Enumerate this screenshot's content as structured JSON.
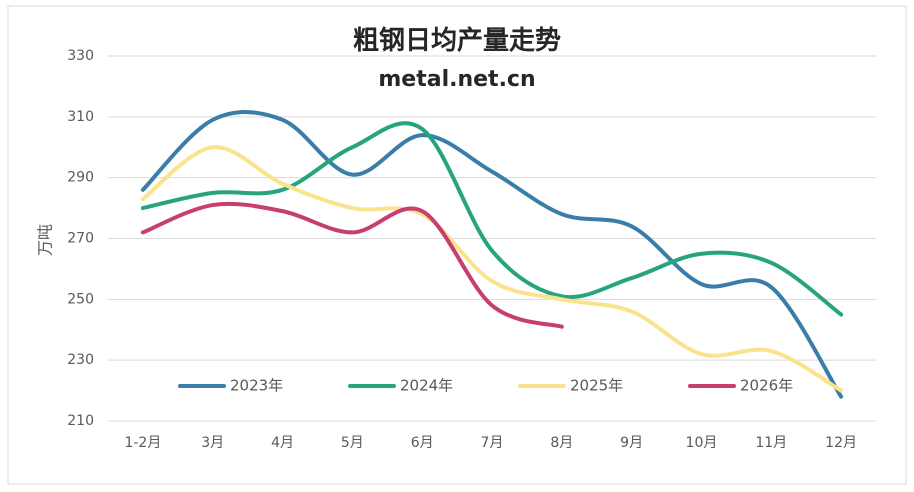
{
  "chart_data": {
    "type": "line",
    "title": "粗钢日均产量走势",
    "subtitle": "metal.net.cn",
    "y_label": "万吨",
    "categories": [
      "1-2月",
      "3月",
      "4月",
      "5月",
      "6月",
      "7月",
      "8月",
      "9月",
      "10月",
      "11月",
      "12月"
    ],
    "series": [
      {
        "name": "2023年",
        "color": "#3a7ea8",
        "values": [
          286,
          309,
          309,
          291,
          304,
          292,
          278,
          274,
          255,
          254,
          218
        ]
      },
      {
        "name": "2024年",
        "color": "#27a37f",
        "values": [
          280,
          285,
          286,
          300,
          306,
          266,
          251,
          257,
          265,
          262,
          245
        ]
      },
      {
        "name": "2025年",
        "color": "#fbe38e",
        "values": [
          283,
          300,
          288,
          280,
          278,
          256,
          250,
          246,
          232,
          233,
          220
        ]
      },
      {
        "name": "2026年",
        "color": "#c63f6e",
        "values": [
          272,
          281,
          279,
          272,
          279,
          248,
          241,
          null,
          null,
          null,
          null
        ]
      }
    ],
    "ylim": [
      210,
      330
    ],
    "yticks": [
      210,
      230,
      250,
      270,
      290,
      310,
      330
    ],
    "grid": true,
    "smooth": true,
    "legend": "bottom"
  }
}
